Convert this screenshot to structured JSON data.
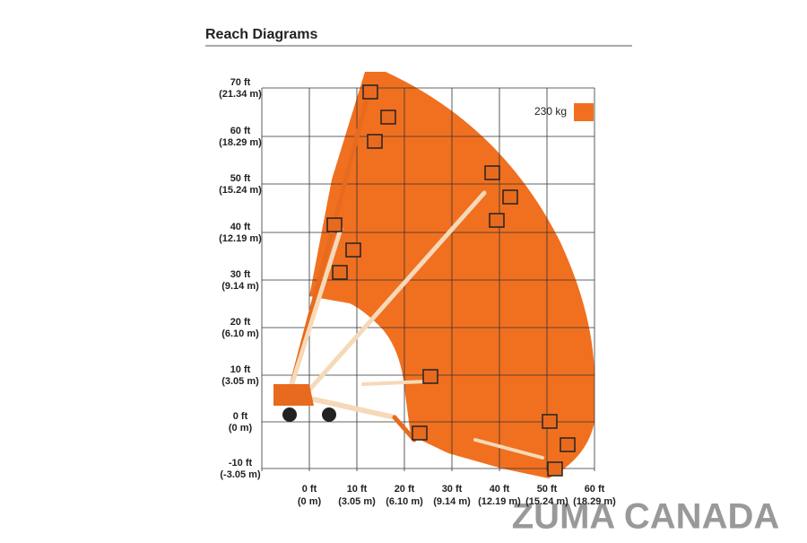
{
  "title": "Reach Diagrams",
  "y_axis": {
    "labels": [
      {
        "ft": "70 ft",
        "m": "(21.34 m)"
      },
      {
        "ft": "60 ft",
        "m": "(18.29 m)"
      },
      {
        "ft": "50 ft",
        "m": "(15.24 m)"
      },
      {
        "ft": "40 ft",
        "m": "(12.19 m)"
      },
      {
        "ft": "30 ft",
        "m": "(9.14 m)"
      },
      {
        "ft": "20 ft",
        "m": "(6.10 m)"
      },
      {
        "ft": "10 ft",
        "m": "(3.05 m)"
      },
      {
        "ft": "0 ft",
        "m": "(0 m)"
      },
      {
        "ft": "-10 ft",
        "m": "(-3.05 m)"
      }
    ]
  },
  "x_axis": {
    "labels": [
      {
        "ft": "0 ft",
        "m": "(0 m)"
      },
      {
        "ft": "10 ft",
        "m": "(3.05 m)"
      },
      {
        "ft": "20 ft",
        "m": "(6.10 m)"
      },
      {
        "ft": "30 ft",
        "m": "(9.14 m)"
      },
      {
        "ft": "40 ft",
        "m": "(12.19 m)"
      },
      {
        "ft": "50 ft",
        "m": "(15.24 m)"
      },
      {
        "ft": "60 ft",
        "m": "(18.29 m)"
      }
    ]
  },
  "legend": {
    "label": "230 kg"
  },
  "watermark": "ZUMA CANADA"
}
